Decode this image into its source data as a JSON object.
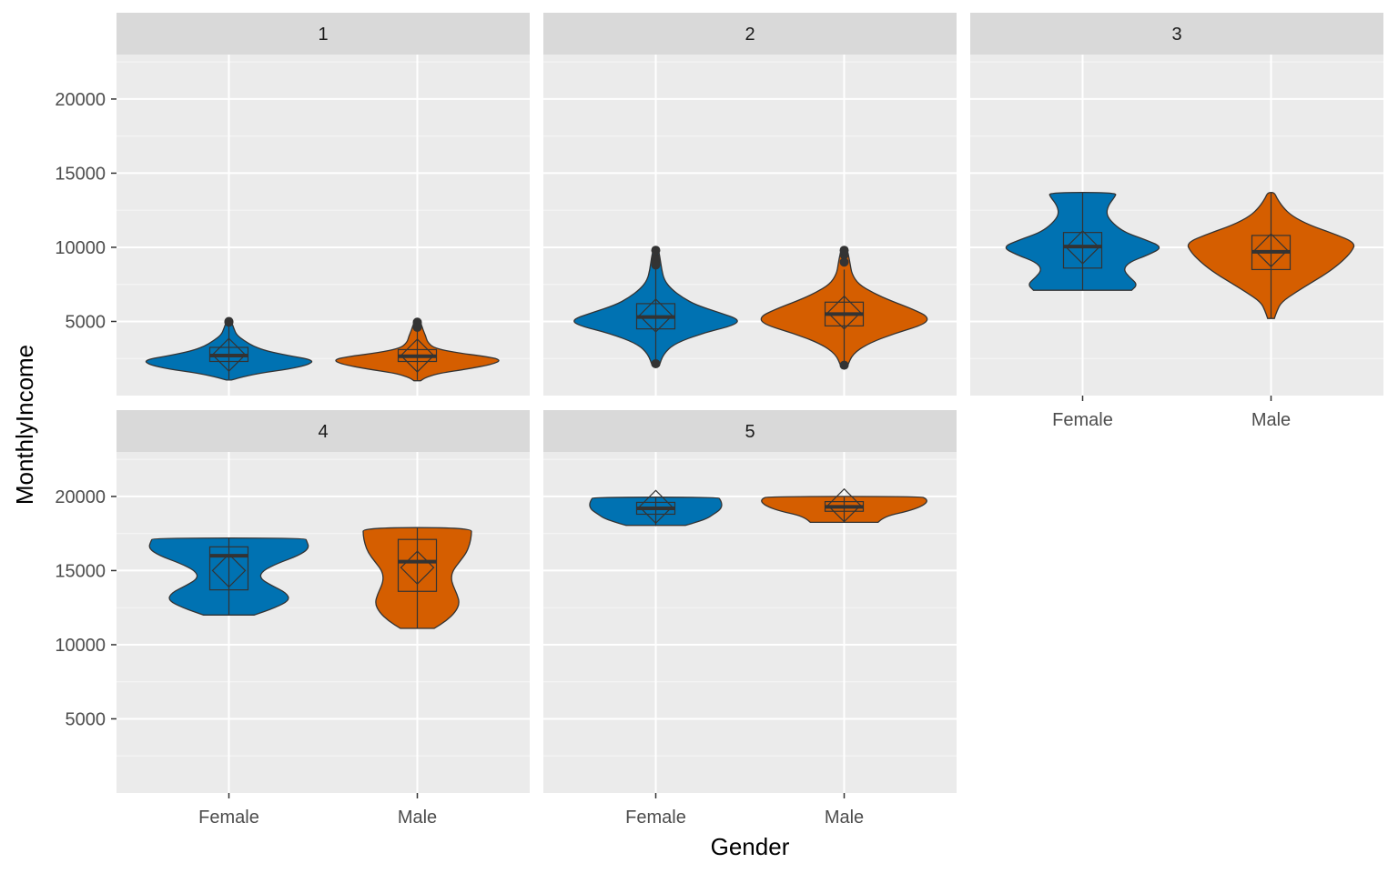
{
  "chart_data": {
    "type": "violin",
    "xlabel": "Gender",
    "ylabel": "MonthlyIncome",
    "ylim": [
      0,
      22000
    ],
    "yticks": [
      5000,
      10000,
      15000,
      20000
    ],
    "categories": [
      "Female",
      "Male"
    ],
    "colors": {
      "Female": "#0072B2",
      "Male": "#D55E00",
      "panel_bg": "#EBEBEB",
      "strip_bg": "#D9D9D9",
      "grid": "#FFFFFF"
    },
    "grid": true,
    "legend": "none",
    "panels": [
      {
        "label": "1",
        "x_axis_shown": false,
        "y_axis_shown": true,
        "ylim": [
          0,
          23000
        ],
        "violins": [
          {
            "group": "Female",
            "q1": 2300,
            "median": 2700,
            "q3": 3250,
            "mean": 2750,
            "whisker_low": 1100,
            "whisker_high": 4800,
            "outliers": [
              4950,
              5000
            ],
            "density": [
              [
                1050,
                0.03
              ],
              [
                1200,
                0.12
              ],
              [
                1500,
                0.35
              ],
              [
                1800,
                0.72
              ],
              [
                2100,
                0.95
              ],
              [
                2400,
                1.0
              ],
              [
                2700,
                0.7
              ],
              [
                3000,
                0.45
              ],
              [
                3300,
                0.3
              ],
              [
                3700,
                0.18
              ],
              [
                4100,
                0.09
              ],
              [
                4500,
                0.06
              ],
              [
                5000,
                0.03
              ]
            ]
          },
          {
            "group": "Male",
            "q1": 2300,
            "median": 2650,
            "q3": 3100,
            "mean": 2700,
            "whisker_low": 1050,
            "whisker_high": 4700,
            "outliers": [
              4800,
              4950,
              4600
            ],
            "density": [
              [
                1000,
                0.04
              ],
              [
                1200,
                0.09
              ],
              [
                1500,
                0.25
              ],
              [
                1800,
                0.6
              ],
              [
                2100,
                0.88
              ],
              [
                2400,
                1.0
              ],
              [
                2650,
                0.8
              ],
              [
                2900,
                0.45
              ],
              [
                3200,
                0.2
              ],
              [
                3600,
                0.12
              ],
              [
                4000,
                0.1
              ],
              [
                4400,
                0.07
              ],
              [
                4950,
                0.04
              ]
            ]
          }
        ]
      },
      {
        "label": "2",
        "x_axis_shown": false,
        "y_axis_shown": false,
        "ylim": [
          0,
          23000
        ],
        "violins": [
          {
            "group": "Female",
            "q1": 4500,
            "median": 5300,
            "q3": 6200,
            "mean": 5400,
            "whisker_low": 2200,
            "whisker_high": 8700,
            "outliers": [
              9000,
              9300,
              9800,
              8800,
              2150
            ],
            "density": [
              [
                2000,
                0.04
              ],
              [
                2800,
                0.09
              ],
              [
                3500,
                0.22
              ],
              [
                4200,
                0.55
              ],
              [
                4700,
                0.9
              ],
              [
                5100,
                1.0
              ],
              [
                5600,
                0.75
              ],
              [
                6100,
                0.48
              ],
              [
                6600,
                0.32
              ],
              [
                7200,
                0.18
              ],
              [
                7800,
                0.1
              ],
              [
                8500,
                0.07
              ],
              [
                9300,
                0.05
              ],
              [
                9900,
                0.03
              ]
            ]
          },
          {
            "group": "Male",
            "q1": 4700,
            "median": 5500,
            "q3": 6300,
            "mean": 5600,
            "whisker_low": 2200,
            "whisker_high": 8500,
            "outliers": [
              9000,
              9500,
              9800,
              2050
            ],
            "density": [
              [
                2000,
                0.04
              ],
              [
                2800,
                0.1
              ],
              [
                3500,
                0.28
              ],
              [
                4200,
                0.6
              ],
              [
                4800,
                0.95
              ],
              [
                5300,
                1.0
              ],
              [
                5800,
                0.82
              ],
              [
                6400,
                0.55
              ],
              [
                6900,
                0.35
              ],
              [
                7500,
                0.17
              ],
              [
                8200,
                0.09
              ],
              [
                8900,
                0.07
              ],
              [
                9500,
                0.05
              ],
              [
                10000,
                0.03
              ]
            ]
          }
        ]
      },
      {
        "label": "3",
        "x_axis_shown": true,
        "y_axis_shown": false,
        "ylim": [
          0,
          23000
        ],
        "violins": [
          {
            "group": "Female",
            "q1": 8600,
            "median": 10050,
            "q3": 11000,
            "mean": 10000,
            "whisker_low": 7100,
            "whisker_high": 13700,
            "outliers": [],
            "density": [
              [
                7100,
                0.58
              ],
              [
                7500,
                0.65
              ],
              [
                8000,
                0.55
              ],
              [
                8500,
                0.48
              ],
              [
                9000,
                0.55
              ],
              [
                9500,
                0.78
              ],
              [
                10000,
                0.95
              ],
              [
                10500,
                0.75
              ],
              [
                11000,
                0.5
              ],
              [
                11600,
                0.36
              ],
              [
                12200,
                0.28
              ],
              [
                12800,
                0.3
              ],
              [
                13400,
                0.38
              ],
              [
                13700,
                0.4
              ]
            ]
          },
          {
            "group": "Male",
            "q1": 8500,
            "median": 9700,
            "q3": 10800,
            "mean": 9800,
            "whisker_low": 5200,
            "whisker_high": 13700,
            "outliers": [],
            "density": [
              [
                5200,
                0.04
              ],
              [
                5700,
                0.07
              ],
              [
                6300,
                0.12
              ],
              [
                7000,
                0.3
              ],
              [
                7700,
                0.5
              ],
              [
                8400,
                0.7
              ],
              [
                9100,
                0.85
              ],
              [
                9700,
                0.95
              ],
              [
                10300,
                1.0
              ],
              [
                10900,
                0.75
              ],
              [
                11500,
                0.45
              ],
              [
                12100,
                0.25
              ],
              [
                12700,
                0.14
              ],
              [
                13300,
                0.07
              ],
              [
                13700,
                0.04
              ]
            ]
          }
        ]
      },
      {
        "label": "4",
        "x_axis_shown": true,
        "y_axis_shown": true,
        "ylim": [
          0,
          23000
        ],
        "violins": [
          {
            "group": "Female",
            "q1": 13700,
            "median": 16000,
            "q3": 16600,
            "mean": 15000,
            "whisker_low": 12000,
            "whisker_high": 17200,
            "outliers": [],
            "density": [
              [
                12000,
                0.3
              ],
              [
                12500,
                0.55
              ],
              [
                13000,
                0.72
              ],
              [
                13500,
                0.68
              ],
              [
                14000,
                0.5
              ],
              [
                14500,
                0.36
              ],
              [
                15000,
                0.4
              ],
              [
                15500,
                0.58
              ],
              [
                16000,
                0.82
              ],
              [
                16500,
                0.95
              ],
              [
                17000,
                0.92
              ],
              [
                17200,
                0.9
              ]
            ]
          },
          {
            "group": "Male",
            "q1": 13600,
            "median": 15600,
            "q3": 17100,
            "mean": 15200,
            "whisker_low": 11100,
            "whisker_high": 17900,
            "outliers": [],
            "density": [
              [
                11100,
                0.2
              ],
              [
                11600,
                0.34
              ],
              [
                12200,
                0.45
              ],
              [
                12800,
                0.5
              ],
              [
                13400,
                0.47
              ],
              [
                14000,
                0.42
              ],
              [
                14500,
                0.4
              ],
              [
                15000,
                0.42
              ],
              [
                15600,
                0.5
              ],
              [
                16200,
                0.58
              ],
              [
                16800,
                0.62
              ],
              [
                17400,
                0.64
              ],
              [
                17900,
                0.64
              ]
            ]
          }
        ]
      },
      {
        "label": "5",
        "x_axis_shown": true,
        "y_axis_shown": false,
        "ylim": [
          0,
          23000
        ],
        "violins": [
          {
            "group": "Female",
            "q1": 18800,
            "median": 19200,
            "q3": 19600,
            "mean": 19300,
            "whisker_low": 18000,
            "whisker_high": 19900,
            "outliers": [],
            "density": [
              [
                18050,
                0.35
              ],
              [
                18300,
                0.5
              ],
              [
                18550,
                0.62
              ],
              [
                18800,
                0.68
              ],
              [
                19050,
                0.75
              ],
              [
                19300,
                0.78
              ],
              [
                19550,
                0.78
              ],
              [
                19800,
                0.76
              ],
              [
                19950,
                0.74
              ]
            ]
          },
          {
            "group": "Male",
            "q1": 19000,
            "median": 19300,
            "q3": 19650,
            "mean": 19400,
            "whisker_low": 18300,
            "whisker_high": 19950,
            "outliers": [],
            "density": [
              [
                18250,
                0.4
              ],
              [
                18500,
                0.45
              ],
              [
                18750,
                0.55
              ],
              [
                19000,
                0.75
              ],
              [
                19300,
                0.9
              ],
              [
                19600,
                0.98
              ],
              [
                19850,
                0.97
              ],
              [
                20000,
                0.9
              ]
            ]
          }
        ]
      }
    ]
  }
}
